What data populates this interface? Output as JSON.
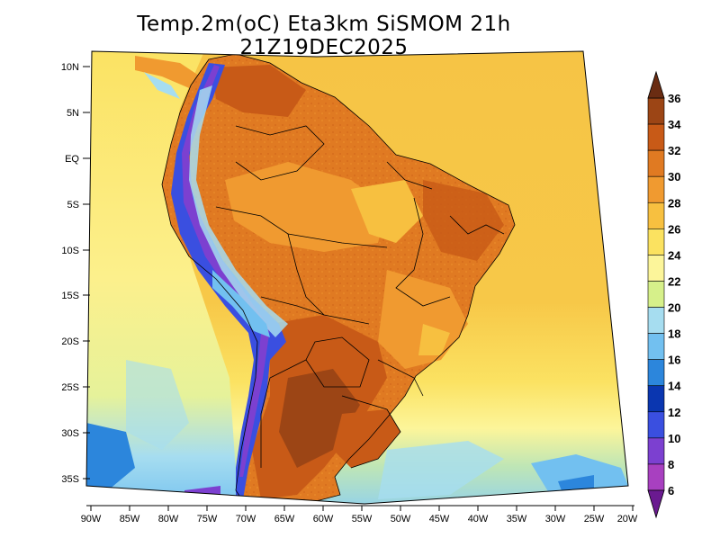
{
  "title": "Temp.2m(oC) Eta3km SiSMOM 21h 21Z19DEC2025",
  "map": {
    "variable": "Temp.2m (oC)",
    "lat_labels": [
      "10N",
      "5N",
      "EQ",
      "5S",
      "10S",
      "15S",
      "20S",
      "25S",
      "30S",
      "35S"
    ],
    "lon_labels": [
      "90W",
      "85W",
      "80W",
      "75W",
      "70W",
      "65W",
      "60W",
      "55W",
      "50W",
      "45W",
      "40W",
      "35W",
      "30W",
      "25W",
      "20W"
    ]
  },
  "colorbar": {
    "labels": [
      "36",
      "34",
      "32",
      "30",
      "28",
      "26",
      "24",
      "22",
      "20",
      "18",
      "16",
      "14",
      "12",
      "10",
      "8",
      "6"
    ],
    "colors_top_to_bottom": [
      "#6a2c12",
      "#9c4515",
      "#c85a17",
      "#e07a22",
      "#f09a30",
      "#f7c040",
      "#fbe260",
      "#fcf59a",
      "#d6f08a",
      "#a6ddf0",
      "#72c0f0",
      "#2c86dc",
      "#0a36b0",
      "#3a4fe0",
      "#7c40d0",
      "#a840c0",
      "#6a1a90"
    ]
  },
  "colors": {
    "ocean_warm": "#f7c040",
    "ocean_mild": "#fbe260",
    "ocean_cool": "#a6ddf0",
    "land_hot": "#e07a22",
    "land_very_hot": "#c85a17",
    "andes_cold": "#3a4fe0"
  }
}
